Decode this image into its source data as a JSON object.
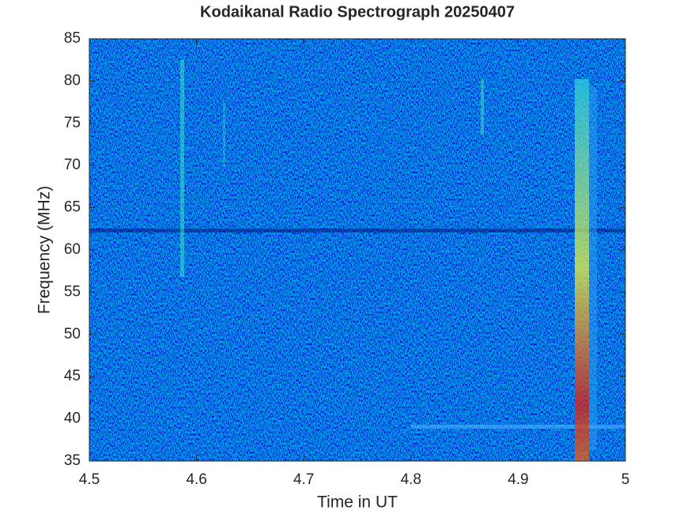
{
  "chart_data": {
    "type": "spectrogram",
    "title": "Kodaikanal Radio Spectrograph  20250407",
    "x_label": "Time in UT",
    "y_label": "Frequency (MHz)",
    "xlim": [
      4.5,
      5
    ],
    "xticks": [
      4.5,
      4.6,
      4.7,
      4.8,
      4.9,
      5
    ],
    "ylim": [
      35,
      85
    ],
    "yticks": [
      35,
      40,
      45,
      50,
      55,
      60,
      65,
      70,
      75,
      80,
      85
    ]
  }
}
